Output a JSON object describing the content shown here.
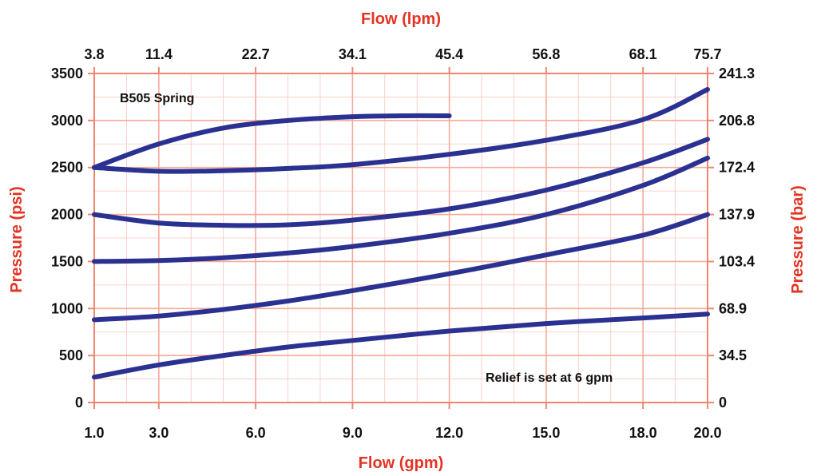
{
  "chart_data": {
    "type": "line",
    "title": "",
    "xlabel_bottom": "Flow (gpm)",
    "xlabel_top": "Flow (lpm)",
    "ylabel_left": "Pressure (psi)",
    "ylabel_right": "Pressure (bar)",
    "xlim": [
      1.0,
      20.0
    ],
    "ylim": [
      0,
      3500
    ],
    "x_ticks": [
      1.0,
      3.0,
      6.0,
      9.0,
      12.0,
      15.0,
      18.0,
      20.0
    ],
    "x_tick_labels": [
      "1.0",
      "3.0",
      "6.0",
      "9.0",
      "12.0",
      "15.0",
      "18.0",
      "20.0"
    ],
    "x_top_tick_labels": [
      "3.8",
      "11.4",
      "22.7",
      "34.1",
      "45.4",
      "56.8",
      "68.1",
      "75.7"
    ],
    "y_ticks": [
      0,
      500,
      1000,
      1500,
      2000,
      2500,
      3000,
      3500
    ],
    "y_tick_labels": [
      "0",
      "500",
      "1000",
      "1500",
      "2000",
      "2500",
      "3000",
      "3500"
    ],
    "y_right_tick_labels": [
      "0",
      "34.5",
      "68.9",
      "103.4",
      "137.9",
      "172.4",
      "206.8",
      "241.3"
    ],
    "grid": true,
    "annotations": {
      "spring": "B505 Spring",
      "relief": "Relief is set at 6 gpm"
    },
    "series": [
      {
        "x": [
          1,
          3,
          5,
          7,
          9,
          10.5,
          12
        ],
        "values": [
          2500,
          2750,
          2920,
          3000,
          3040,
          3050,
          3050
        ]
      },
      {
        "x": [
          1,
          3,
          5,
          7,
          9,
          12,
          15,
          18,
          20
        ],
        "values": [
          2500,
          2460,
          2465,
          2490,
          2530,
          2640,
          2790,
          3010,
          3330
        ]
      },
      {
        "x": [
          1,
          3,
          5,
          7,
          9,
          12,
          15,
          18,
          20
        ],
        "values": [
          2000,
          1910,
          1885,
          1890,
          1940,
          2060,
          2260,
          2550,
          2800
        ]
      },
      {
        "x": [
          1,
          3,
          5,
          7,
          9,
          12,
          15,
          18,
          20
        ],
        "values": [
          1500,
          1510,
          1540,
          1590,
          1660,
          1800,
          2000,
          2310,
          2600
        ]
      },
      {
        "x": [
          1,
          3,
          5,
          7,
          9,
          12,
          15,
          18,
          20
        ],
        "values": [
          880,
          920,
          990,
          1080,
          1190,
          1370,
          1570,
          1780,
          2000
        ]
      },
      {
        "x": [
          1,
          3,
          5,
          7,
          9,
          12,
          15,
          18,
          20
        ],
        "values": [
          270,
          400,
          500,
          590,
          660,
          760,
          840,
          900,
          940
        ]
      }
    ],
    "colors": {
      "line": "#2b3191",
      "grid": "#f5aa9a",
      "grid_minor": "#f8c6ba",
      "axis_frame": "#f08672",
      "axis_title": "#e53323"
    }
  }
}
